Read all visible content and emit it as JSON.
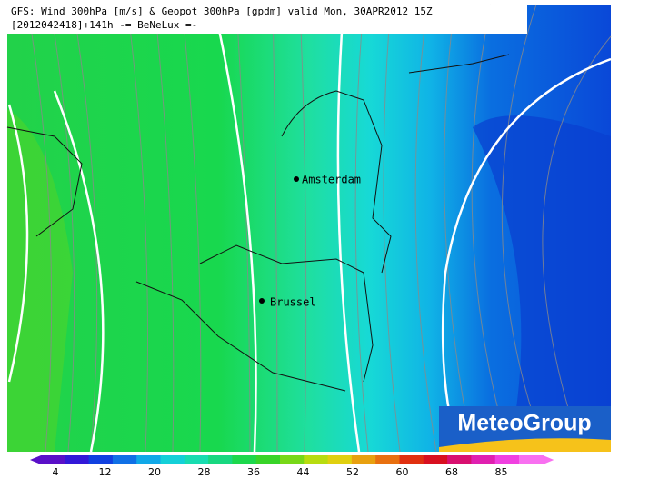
{
  "header": {
    "line1": "GFS: Wind 300hPa [m/s] & Geopot 300hPa [gpdm] valid Mon, 30APR2012 15Z",
    "line2": "[2012042418]+141h -= BeNeLux =-"
  },
  "cities": [
    {
      "label": "Amsterdam"
    },
    {
      "label": "Brussel"
    }
  ],
  "colorbar": {
    "ticks": [
      4,
      12,
      20,
      28,
      36,
      44,
      52,
      60,
      68,
      85
    ]
  },
  "logo": {
    "text": "MeteoGroup"
  }
}
